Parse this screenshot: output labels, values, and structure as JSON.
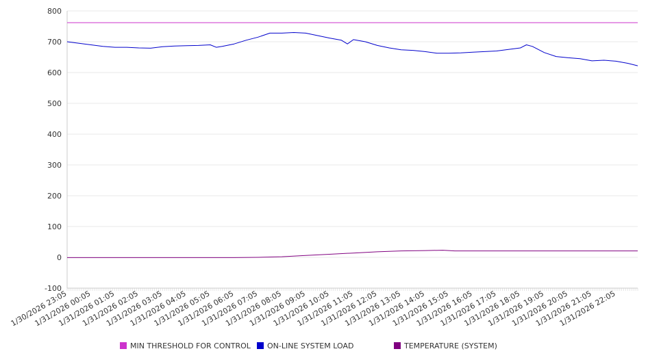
{
  "chart_data": {
    "type": "line",
    "ylim": [
      -100,
      800
    ],
    "yticks": [
      -100,
      0,
      100,
      200,
      300,
      400,
      500,
      600,
      700,
      800
    ],
    "x_tick_labels": [
      "1/30/2026 23:05",
      "1/31/2026 00:05",
      "1/31/2026 01:05",
      "1/31/2026 02:05",
      "1/31/2026 03:05",
      "1/31/2026 04:05",
      "1/31/2026 05:05",
      "1/31/2026 06:05",
      "1/31/2026 07:05",
      "1/31/2026 08:05",
      "1/31/2026 09:05",
      "1/31/2026 10:05",
      "1/31/2026 11:05",
      "1/31/2026 12:05",
      "1/31/2026 13:05",
      "1/31/2026 14:05",
      "1/31/2026 15:05",
      "1/31/2026 16:05",
      "1/31/2026 17:05",
      "1/31/2026 18:05",
      "1/31/2026 19:05",
      "1/31/2026 20:05",
      "1/31/2026 21:05",
      "1/31/2026 22:05"
    ],
    "x_range": [
      "1/30/2026 23:05",
      "1/31/2026 23:00"
    ],
    "grid": true,
    "legend_position": "bottom",
    "series": [
      {
        "name": "MIN THRESHOLD FOR CONTROL",
        "color": "#cc33cc",
        "x": [
          "1/30/2026 23:05",
          "1/31/2026 23:00"
        ],
        "values": [
          762,
          762
        ]
      },
      {
        "name": "ON-LINE SYSTEM LOAD",
        "color": "#0000cc",
        "x": [
          "1/30/2026 23:05",
          "1/30/2026 23:35",
          "1/31/2026 00:05",
          "1/31/2026 00:35",
          "1/31/2026 01:05",
          "1/31/2026 01:35",
          "1/31/2026 02:05",
          "1/31/2026 02:35",
          "1/31/2026 03:05",
          "1/31/2026 03:35",
          "1/31/2026 04:05",
          "1/31/2026 04:35",
          "1/31/2026 05:05",
          "1/31/2026 05:20",
          "1/31/2026 05:35",
          "1/31/2026 06:05",
          "1/31/2026 06:35",
          "1/31/2026 07:05",
          "1/31/2026 07:35",
          "1/31/2026 08:05",
          "1/31/2026 08:35",
          "1/31/2026 09:05",
          "1/31/2026 09:35",
          "1/31/2026 10:05",
          "1/31/2026 10:35",
          "1/31/2026 10:50",
          "1/31/2026 11:05",
          "1/31/2026 11:35",
          "1/31/2026 12:05",
          "1/31/2026 12:35",
          "1/31/2026 13:05",
          "1/31/2026 13:35",
          "1/31/2026 14:05",
          "1/31/2026 14:35",
          "1/31/2026 15:05",
          "1/31/2026 15:35",
          "1/31/2026 16:05",
          "1/31/2026 16:35",
          "1/31/2026 17:05",
          "1/31/2026 17:35",
          "1/31/2026 18:05",
          "1/31/2026 18:20",
          "1/31/2026 18:35",
          "1/31/2026 19:05",
          "1/31/2026 19:35",
          "1/31/2026 20:05",
          "1/31/2026 20:35",
          "1/31/2026 21:05",
          "1/31/2026 21:35",
          "1/31/2026 22:05",
          "1/31/2026 22:35",
          "1/31/2026 23:00"
        ],
        "values": [
          700,
          695,
          690,
          685,
          682,
          682,
          680,
          679,
          684,
          686,
          687,
          688,
          690,
          682,
          685,
          693,
          705,
          715,
          728,
          728,
          730,
          728,
          720,
          712,
          705,
          693,
          707,
          700,
          688,
          680,
          674,
          672,
          668,
          663,
          663,
          664,
          666,
          668,
          670,
          675,
          680,
          690,
          685,
          665,
          652,
          648,
          645,
          638,
          640,
          637,
          630,
          622
        ]
      },
      {
        "name": "TEMPERATURE (SYSTEM)",
        "color": "#800080",
        "x": [
          "1/30/2026 23:05",
          "1/31/2026 06:05",
          "1/31/2026 07:05",
          "1/31/2026 08:05",
          "1/31/2026 09:05",
          "1/31/2026 10:05",
          "1/31/2026 11:05",
          "1/31/2026 12:05",
          "1/31/2026 13:05",
          "1/31/2026 14:05",
          "1/31/2026 14:50",
          "1/31/2026 15:20",
          "1/31/2026 16:05",
          "1/31/2026 23:00"
        ],
        "values": [
          -1,
          -1,
          0,
          2,
          6,
          10,
          14,
          18,
          21,
          22,
          23,
          21,
          21,
          21
        ]
      }
    ]
  }
}
